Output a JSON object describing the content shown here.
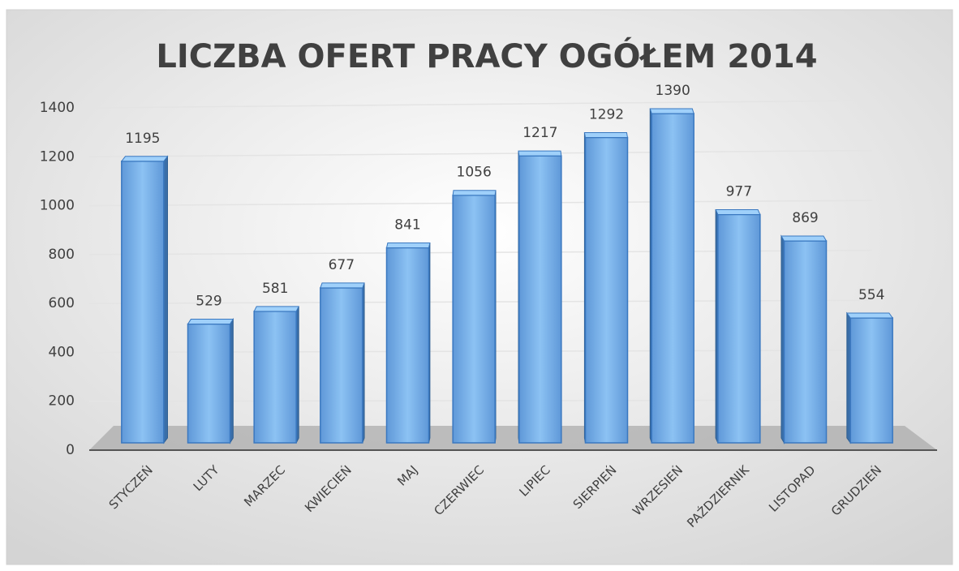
{
  "chart_data": {
    "type": "bar3d",
    "title": "LICZBA OFERT PRACY OGÓŁEM 2014",
    "categories": [
      "STYCZEŃ",
      "LUTY",
      "MARZEC",
      "KWIECIEŃ",
      "MAJ",
      "CZERWIEC",
      "LIPIEC",
      "SIERPIEŃ",
      "WRZESIEŃ",
      "PAŹDZIERNIK",
      "LISTOPAD",
      "GRUDZIEŃ"
    ],
    "values": [
      1195,
      529,
      581,
      677,
      841,
      1056,
      1217,
      1292,
      1390,
      977,
      869,
      554
    ],
    "color": "#6fa8e6",
    "ylim": [
      0,
      1400
    ],
    "yticks": [
      0,
      200,
      400,
      600,
      800,
      1000,
      1200,
      1400
    ],
    "grid": true
  }
}
